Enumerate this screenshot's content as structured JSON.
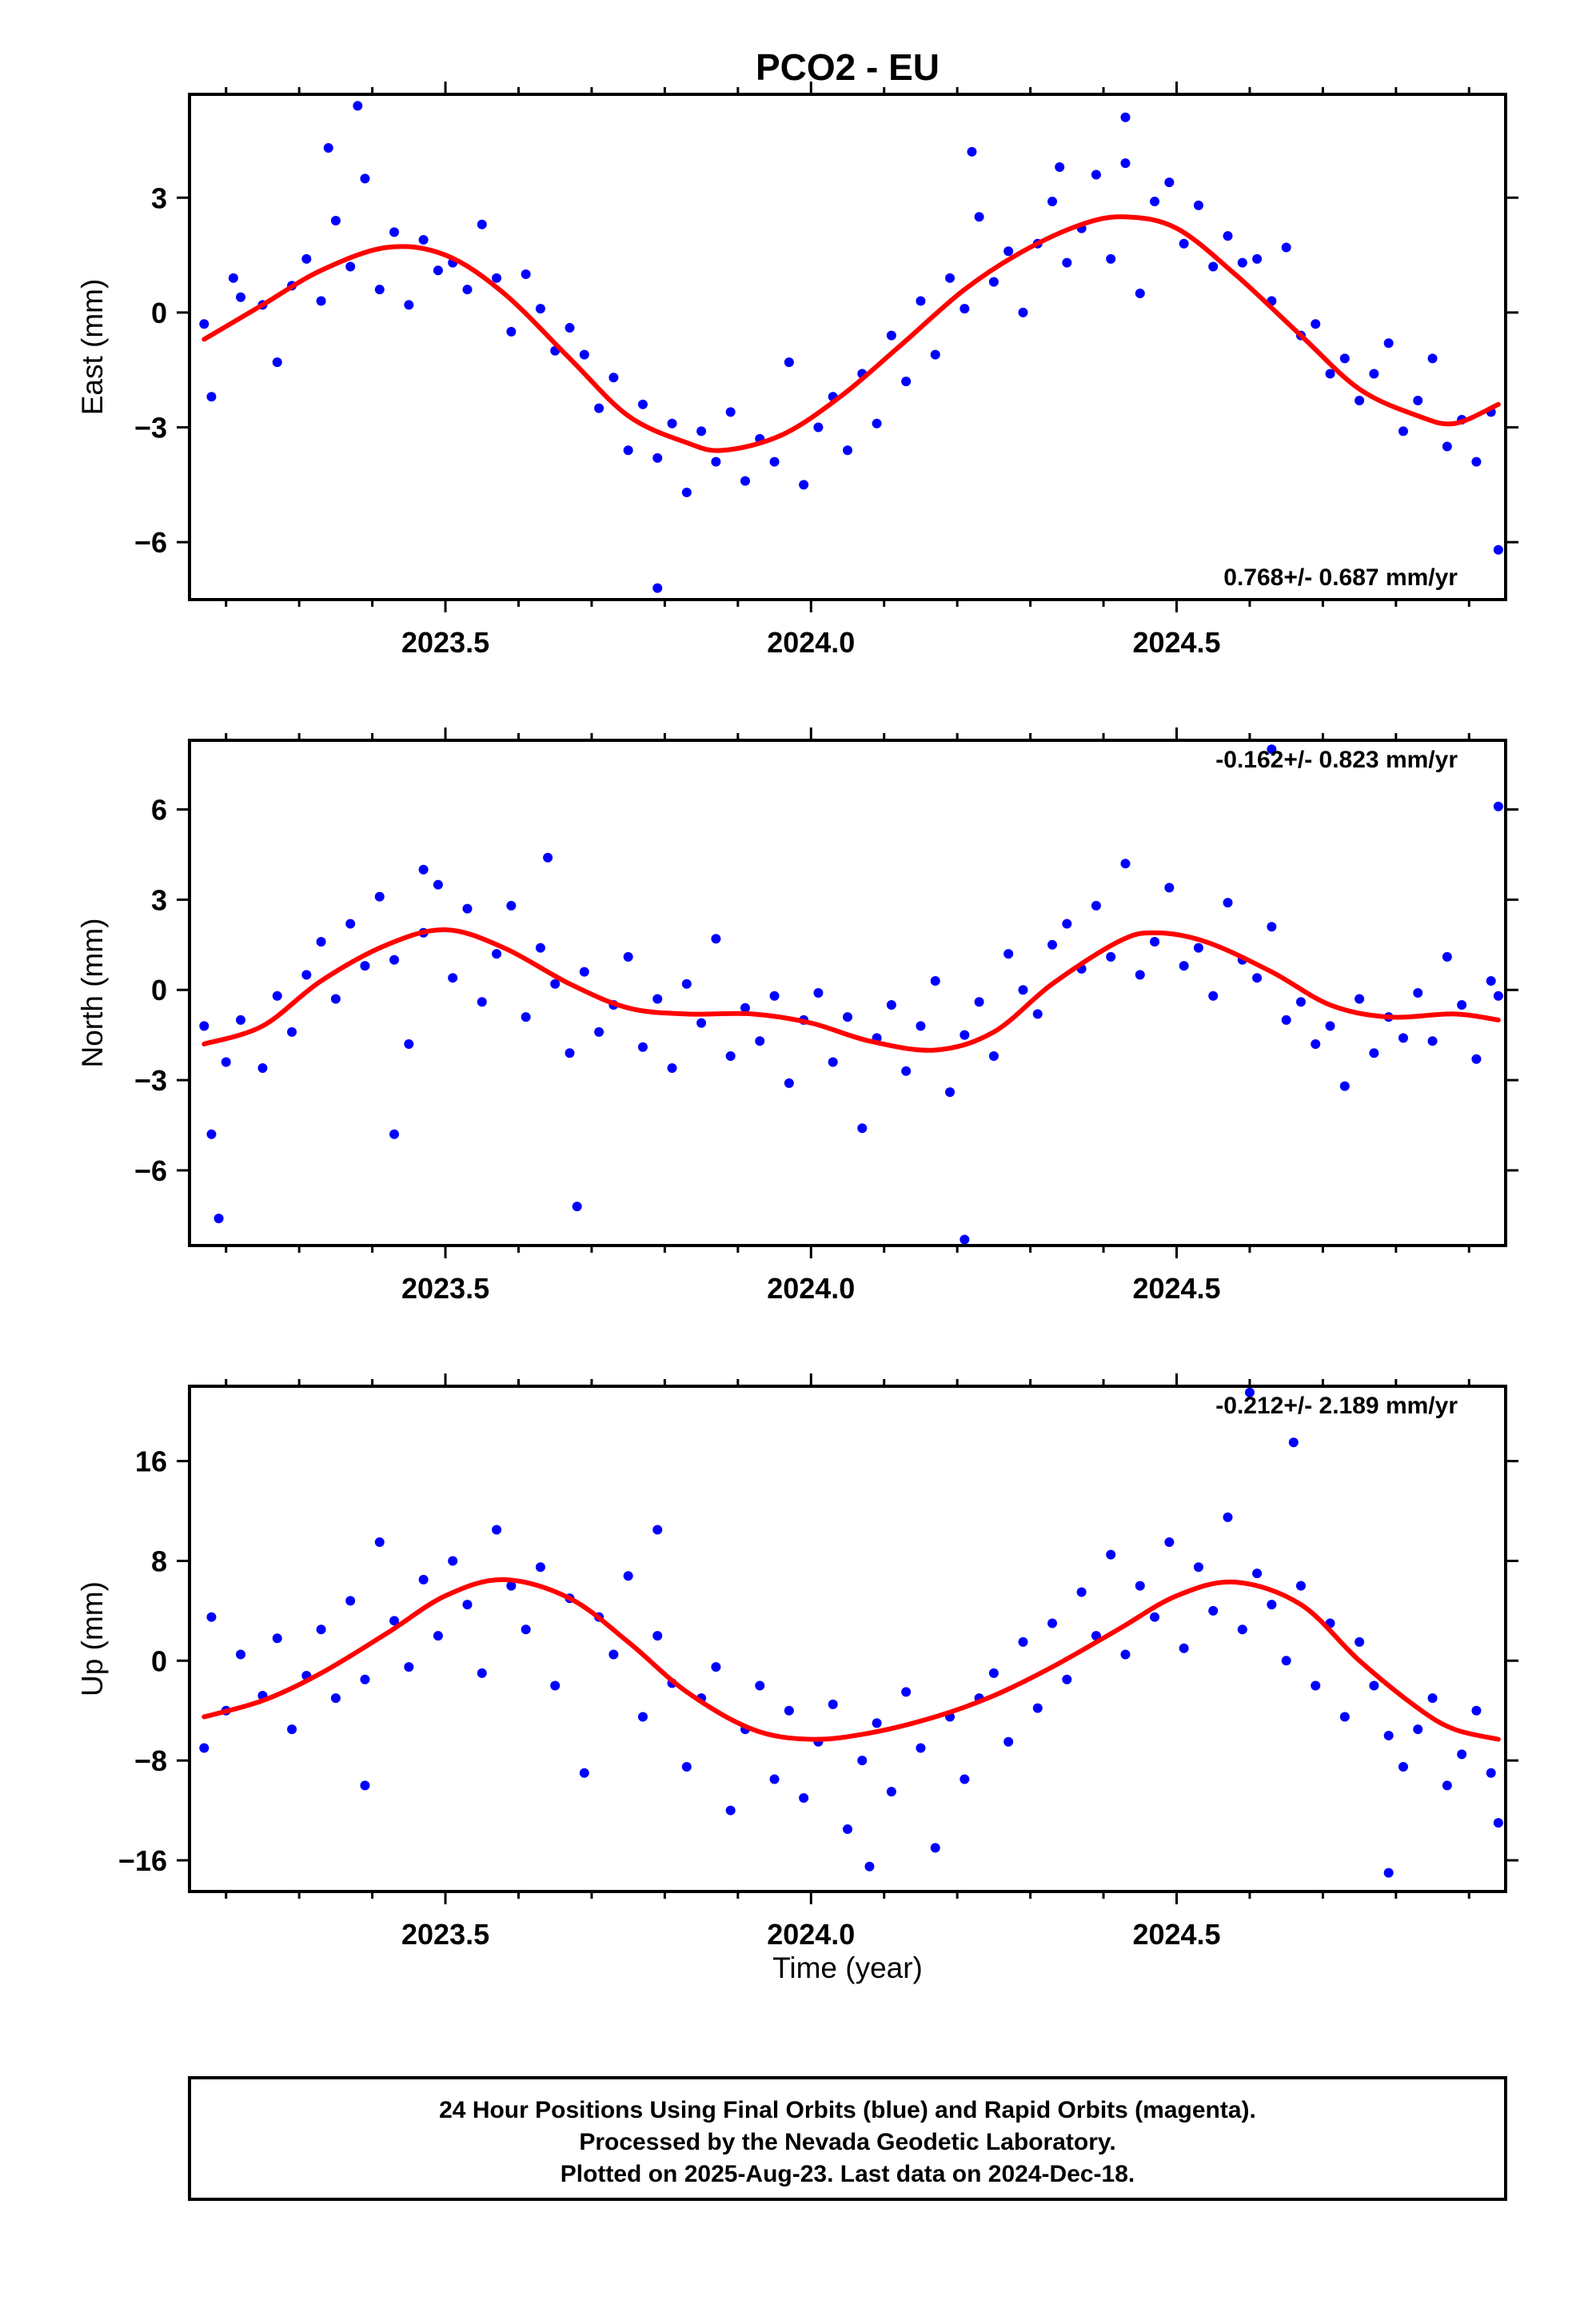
{
  "title": "PCO2 - EU",
  "xlabel": "Time (year)",
  "footer": {
    "lines": [
      "24 Hour Positions Using Final Orbits (blue) and Rapid Orbits (magenta).",
      "Processed by the Nevada Geodetic Laboratory.",
      "Plotted on 2025-Aug-23. Last data on 2024-Dec-18."
    ]
  },
  "colors": {
    "points": "#0000ff",
    "fit": "#ff0000",
    "frame": "#000000"
  },
  "chart_data": [
    {
      "type": "scatter",
      "ylabel": "East (mm)",
      "trend_text": "0.768+/- 0.687 mm/yr",
      "trend_position": "bottom-right",
      "xlim": [
        2023.15,
        2024.95
      ],
      "ylim": [
        -7.5,
        5.7
      ],
      "yticks": [
        -6,
        -3,
        0,
        3
      ],
      "xticks": [
        2023.5,
        2024.0,
        2024.5
      ],
      "series": [
        {
          "kind": "points",
          "x": [
            2023.17,
            2023.18,
            2023.21,
            2023.22,
            2023.25,
            2023.27,
            2023.29,
            2023.31,
            2023.33,
            2023.35,
            2023.37,
            2023.39,
            2023.41,
            2023.43,
            2023.45,
            2023.47,
            2023.49,
            2023.51,
            2023.53,
            2023.55,
            2023.57,
            2023.59,
            2023.61,
            2023.63,
            2023.65,
            2023.67,
            2023.69,
            2023.71,
            2023.73,
            2023.75,
            2023.77,
            2023.79,
            2023.81,
            2023.83,
            2023.85,
            2023.87,
            2023.89,
            2023.91,
            2023.93,
            2023.95,
            2023.97,
            2023.99,
            2024.01,
            2024.03,
            2024.05,
            2024.07,
            2024.09,
            2024.11,
            2024.13,
            2024.15,
            2024.17,
            2024.19,
            2024.21,
            2024.23,
            2024.25,
            2024.27,
            2024.29,
            2024.31,
            2024.33,
            2024.35,
            2024.37,
            2024.39,
            2024.41,
            2024.43,
            2024.45,
            2024.47,
            2024.49,
            2024.51,
            2024.53,
            2024.55,
            2024.57,
            2024.59,
            2024.61,
            2024.63,
            2024.65,
            2024.67,
            2024.69,
            2024.71,
            2024.73,
            2024.75,
            2024.77,
            2024.79,
            2024.81,
            2024.83,
            2024.85,
            2024.87,
            2024.89,
            2024.91,
            2024.93,
            2024.94,
            2023.38,
            2023.79,
            2024.22,
            2024.43,
            2023.34,
            2024.34
          ],
          "y": [
            -0.3,
            -2.2,
            0.9,
            0.4,
            0.2,
            -1.3,
            0.7,
            1.4,
            0.3,
            2.4,
            1.2,
            3.5,
            0.6,
            2.1,
            0.2,
            1.9,
            1.1,
            1.3,
            0.6,
            2.3,
            0.9,
            -0.5,
            1.0,
            0.1,
            -1.0,
            -0.4,
            -1.1,
            -2.5,
            -1.7,
            -3.6,
            -2.4,
            -3.8,
            -2.9,
            -4.7,
            -3.1,
            -3.9,
            -2.6,
            -4.4,
            -3.3,
            -3.9,
            -1.3,
            -4.5,
            -3.0,
            -2.2,
            -3.6,
            -1.6,
            -2.9,
            -0.6,
            -1.8,
            0.3,
            -1.1,
            0.9,
            0.1,
            2.5,
            0.8,
            1.6,
            0.0,
            1.8,
            2.9,
            1.3,
            2.2,
            3.6,
            1.4,
            3.9,
            0.5,
            2.9,
            3.4,
            1.8,
            2.8,
            1.2,
            2.0,
            1.3,
            1.4,
            0.3,
            1.7,
            -0.6,
            -0.3,
            -1.6,
            -1.2,
            -2.3,
            -1.6,
            -0.8,
            -3.1,
            -2.3,
            -1.2,
            -3.5,
            -2.8,
            -3.9,
            -2.6,
            -6.2,
            5.4,
            -7.2,
            4.2,
            5.1,
            4.3,
            3.8
          ]
        },
        {
          "kind": "fit",
          "x": [
            2023.17,
            2023.25,
            2023.33,
            2023.42,
            2023.5,
            2023.58,
            2023.67,
            2023.75,
            2023.83,
            2023.88,
            2023.96,
            2024.04,
            2024.12,
            2024.21,
            2024.29,
            2024.37,
            2024.43,
            2024.5,
            2024.58,
            2024.67,
            2024.75,
            2024.83,
            2024.88,
            2024.94
          ],
          "y": [
            -0.7,
            0.2,
            1.1,
            1.7,
            1.5,
            0.5,
            -1.2,
            -2.7,
            -3.4,
            -3.6,
            -3.2,
            -2.2,
            -0.9,
            0.6,
            1.6,
            2.3,
            2.5,
            2.2,
            1.0,
            -0.6,
            -2.0,
            -2.7,
            -2.9,
            -2.4
          ]
        }
      ]
    },
    {
      "type": "scatter",
      "ylabel": "North (mm)",
      "trend_text": "-0.162+/- 0.823 mm/yr",
      "trend_position": "top-right",
      "xlim": [
        2023.15,
        2024.95
      ],
      "ylim": [
        -8.5,
        8.3
      ],
      "yticks": [
        -6,
        -3,
        0,
        3,
        6
      ],
      "xticks": [
        2023.5,
        2024.0,
        2024.5
      ],
      "series": [
        {
          "kind": "points",
          "x": [
            2023.17,
            2023.18,
            2023.2,
            2023.22,
            2023.25,
            2023.27,
            2023.29,
            2023.31,
            2023.33,
            2023.35,
            2023.37,
            2023.39,
            2023.41,
            2023.43,
            2023.45,
            2023.47,
            2023.49,
            2023.51,
            2023.53,
            2023.55,
            2023.57,
            2023.59,
            2023.61,
            2023.63,
            2023.65,
            2023.67,
            2023.69,
            2023.71,
            2023.73,
            2023.75,
            2023.77,
            2023.79,
            2023.81,
            2023.83,
            2023.85,
            2023.87,
            2023.89,
            2023.91,
            2023.93,
            2023.95,
            2023.97,
            2023.99,
            2024.01,
            2024.03,
            2024.05,
            2024.07,
            2024.09,
            2024.11,
            2024.13,
            2024.15,
            2024.17,
            2024.19,
            2024.21,
            2024.23,
            2024.25,
            2024.27,
            2024.29,
            2024.31,
            2024.33,
            2024.35,
            2024.37,
            2024.39,
            2024.41,
            2024.43,
            2024.45,
            2024.47,
            2024.49,
            2024.51,
            2024.53,
            2024.55,
            2024.57,
            2024.59,
            2024.61,
            2024.63,
            2024.65,
            2024.67,
            2024.69,
            2024.71,
            2024.73,
            2024.75,
            2024.77,
            2024.79,
            2024.81,
            2024.83,
            2024.85,
            2024.87,
            2024.89,
            2024.91,
            2024.93,
            2024.94,
            2023.19,
            2023.43,
            2023.47,
            2023.64,
            2023.68,
            2024.21,
            2024.63,
            2024.94
          ],
          "y": [
            -1.2,
            -4.8,
            -2.4,
            -1.0,
            -2.6,
            -0.2,
            -1.4,
            0.5,
            1.6,
            -0.3,
            2.2,
            0.8,
            3.1,
            1.0,
            -1.8,
            1.9,
            3.5,
            0.4,
            2.7,
            -0.4,
            1.2,
            2.8,
            -0.9,
            1.4,
            0.2,
            -2.1,
            0.6,
            -1.4,
            -0.5,
            1.1,
            -1.9,
            -0.3,
            -2.6,
            0.2,
            -1.1,
            1.7,
            -2.2,
            -0.6,
            -1.7,
            -0.2,
            -3.1,
            -1.0,
            -0.1,
            -2.4,
            -0.9,
            -4.6,
            -1.6,
            -0.5,
            -2.7,
            -1.2,
            0.3,
            -3.4,
            -1.5,
            -0.4,
            -2.2,
            1.2,
            0.0,
            -0.8,
            1.5,
            2.2,
            0.7,
            2.8,
            1.1,
            4.2,
            0.5,
            1.6,
            3.4,
            0.8,
            1.4,
            -0.2,
            2.9,
            1.0,
            0.4,
            2.1,
            -1.0,
            -0.4,
            -1.8,
            -1.2,
            -3.2,
            -0.3,
            -2.1,
            -0.9,
            -1.6,
            -0.1,
            -1.7,
            1.1,
            -0.5,
            -2.3,
            0.3,
            -0.2,
            -7.6,
            -4.8,
            4.0,
            4.4,
            -7.2,
            -8.3,
            8.0,
            6.1
          ]
        },
        {
          "kind": "fit",
          "x": [
            2023.17,
            2023.25,
            2023.33,
            2023.42,
            2023.5,
            2023.58,
            2023.67,
            2023.75,
            2023.83,
            2023.92,
            2024.0,
            2024.08,
            2024.17,
            2024.25,
            2024.33,
            2024.42,
            2024.47,
            2024.54,
            2024.63,
            2024.71,
            2024.79,
            2024.88,
            2024.94
          ],
          "y": [
            -1.8,
            -1.2,
            0.3,
            1.5,
            2.0,
            1.4,
            0.2,
            -0.6,
            -0.8,
            -0.8,
            -1.1,
            -1.7,
            -2.0,
            -1.4,
            0.2,
            1.6,
            1.9,
            1.6,
            0.6,
            -0.5,
            -0.9,
            -0.8,
            -1.0
          ]
        }
      ]
    },
    {
      "type": "scatter",
      "ylabel": "Up (mm)",
      "trend_text": "-0.212+/- 2.189 mm/yr",
      "trend_position": "top-right",
      "xlim": [
        2023.15,
        2024.95
      ],
      "ylim": [
        -18.5,
        22.0
      ],
      "yticks": [
        -16,
        -8,
        0,
        8,
        16
      ],
      "xticks": [
        2023.5,
        2024.0,
        2024.5
      ],
      "series": [
        {
          "kind": "points",
          "x": [
            2023.17,
            2023.18,
            2023.2,
            2023.22,
            2023.25,
            2023.27,
            2023.29,
            2023.31,
            2023.33,
            2023.35,
            2023.37,
            2023.39,
            2023.41,
            2023.43,
            2023.45,
            2023.47,
            2023.49,
            2023.51,
            2023.53,
            2023.55,
            2023.57,
            2023.59,
            2023.61,
            2023.63,
            2023.65,
            2023.67,
            2023.69,
            2023.71,
            2023.73,
            2023.75,
            2023.77,
            2023.79,
            2023.81,
            2023.83,
            2023.85,
            2023.87,
            2023.89,
            2023.91,
            2023.93,
            2023.95,
            2023.97,
            2023.99,
            2024.01,
            2024.03,
            2024.05,
            2024.07,
            2024.09,
            2024.11,
            2024.13,
            2024.15,
            2024.17,
            2024.19,
            2024.21,
            2024.23,
            2024.25,
            2024.27,
            2024.29,
            2024.31,
            2024.33,
            2024.35,
            2024.37,
            2024.39,
            2024.41,
            2024.43,
            2024.45,
            2024.47,
            2024.49,
            2024.51,
            2024.53,
            2024.55,
            2024.57,
            2024.59,
            2024.61,
            2024.63,
            2024.65,
            2024.67,
            2024.69,
            2024.71,
            2024.73,
            2024.75,
            2024.77,
            2024.79,
            2024.81,
            2024.83,
            2024.85,
            2024.87,
            2024.89,
            2024.91,
            2024.93,
            2024.94,
            2023.39,
            2023.79,
            2024.08,
            2024.6,
            2024.66,
            2024.79
          ],
          "y": [
            -7.0,
            3.5,
            -4.0,
            0.5,
            -2.8,
            1.8,
            -5.5,
            -1.2,
            2.5,
            -3.0,
            4.8,
            -1.5,
            9.5,
            3.2,
            -0.5,
            6.5,
            2.0,
            8.0,
            4.5,
            -1.0,
            10.5,
            6.0,
            2.5,
            7.5,
            -2.0,
            5.0,
            -9.0,
            3.5,
            0.5,
            6.8,
            -4.5,
            2.0,
            -1.8,
            -8.5,
            -3.0,
            -0.5,
            -12.0,
            -5.5,
            -2.0,
            -9.5,
            -4.0,
            -11.0,
            -6.5,
            -3.5,
            -13.5,
            -8.0,
            -5.0,
            -10.5,
            -2.5,
            -7.0,
            -15.0,
            -4.5,
            -9.5,
            -3.0,
            -1.0,
            -6.5,
            1.5,
            -3.8,
            3.0,
            -1.5,
            5.5,
            2.0,
            8.5,
            0.5,
            6.0,
            3.5,
            9.5,
            1.0,
            7.5,
            4.0,
            11.5,
            2.5,
            7.0,
            4.5,
            0.0,
            6.0,
            -2.0,
            3.0,
            -4.5,
            1.5,
            -2.0,
            -6.0,
            -8.5,
            -5.5,
            -3.0,
            -10.0,
            -7.5,
            -4.0,
            -9.0,
            -13.0,
            -10.0,
            10.5,
            -16.5,
            21.5,
            17.5,
            -17.0
          ]
        },
        {
          "kind": "fit",
          "x": [
            2023.17,
            2023.25,
            2023.33,
            2023.42,
            2023.5,
            2023.58,
            2023.67,
            2023.75,
            2023.83,
            2023.92,
            2024.0,
            2024.08,
            2024.17,
            2024.25,
            2024.33,
            2024.42,
            2024.5,
            2024.58,
            2024.67,
            2024.75,
            2024.83,
            2024.88,
            2024.94
          ],
          "y": [
            -4.5,
            -3.2,
            -1.0,
            2.2,
            5.2,
            6.5,
            5.0,
            1.5,
            -2.5,
            -5.5,
            -6.3,
            -5.8,
            -4.5,
            -2.8,
            -0.5,
            2.5,
            5.2,
            6.3,
            4.5,
            0.0,
            -3.8,
            -5.5,
            -6.3
          ]
        }
      ]
    }
  ]
}
